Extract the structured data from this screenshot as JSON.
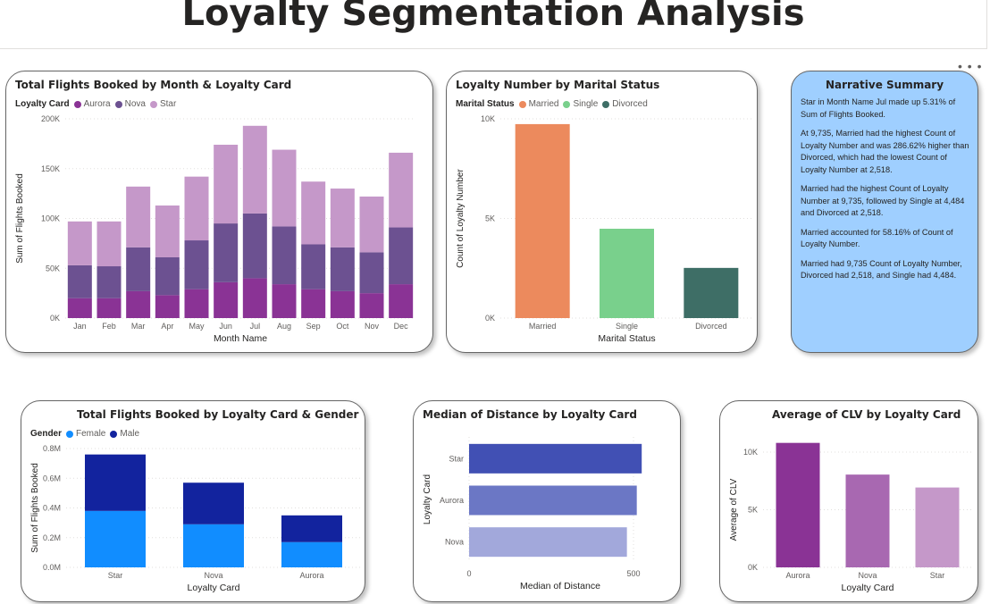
{
  "page": {
    "title": "Loyalty Segmentation Analysis"
  },
  "chart_data": [
    {
      "id": "monthly",
      "type": "bar",
      "stacked": true,
      "title": "Total Flights Booked by Month & Loyalty Card",
      "legend_title": "Loyalty Card",
      "xlabel": "Month Name",
      "ylabel": "Sum of Flights Booked",
      "categories": [
        "Jan",
        "Feb",
        "Mar",
        "Apr",
        "May",
        "Jun",
        "Jul",
        "Aug",
        "Sep",
        "Oct",
        "Nov",
        "Dec"
      ],
      "series": [
        {
          "name": "Aurora",
          "color": "#8a3395",
          "values": [
            20000,
            20000,
            27000,
            23000,
            29000,
            36000,
            40000,
            34000,
            29000,
            27000,
            25000,
            34000
          ]
        },
        {
          "name": "Nova",
          "color": "#6c5191",
          "values": [
            33000,
            32000,
            44000,
            38000,
            49000,
            59000,
            65000,
            58000,
            45000,
            44000,
            41000,
            57000
          ]
        },
        {
          "name": "Star",
          "color": "#c598c9",
          "values": [
            44000,
            45000,
            61000,
            52000,
            64000,
            79000,
            88000,
            77000,
            63000,
            59000,
            56000,
            75000
          ]
        }
      ],
      "yticks": [
        "0K",
        "50K",
        "100K",
        "150K",
        "200K"
      ],
      "ylim": [
        0,
        200000
      ],
      "grid": true,
      "legend_position": "top-left"
    },
    {
      "id": "marital",
      "type": "bar",
      "title": "Loyalty Number by Marital Status",
      "legend_title": "Marital Status",
      "xlabel": "Marital Status",
      "ylabel": "Count of Loyalty Number",
      "categories": [
        "Married",
        "Single",
        "Divorced"
      ],
      "values": [
        9735,
        4484,
        2518
      ],
      "colors": [
        "#ec8a5d",
        "#79d08c",
        "#3e6e66"
      ],
      "yticks": [
        "0K",
        "5K",
        "10K"
      ],
      "ylim": [
        0,
        10000
      ],
      "grid": true,
      "legend_position": "top-left"
    },
    {
      "id": "gender",
      "type": "bar",
      "stacked": true,
      "title": "Total Flights Booked by Loyalty Card & Gender",
      "legend_title": "Gender",
      "xlabel": "Loyalty Card",
      "ylabel": "Sum of Flights Booked",
      "categories": [
        "Star",
        "Nova",
        "Aurora"
      ],
      "series": [
        {
          "name": "Female",
          "color": "#118dff",
          "values": [
            0.38,
            0.29,
            0.17
          ]
        },
        {
          "name": "Male",
          "color": "#12239e",
          "values": [
            0.38,
            0.28,
            0.18
          ]
        }
      ],
      "yticks": [
        "0.0M",
        "0.2M",
        "0.4M",
        "0.6M",
        "0.8M"
      ],
      "ylim": [
        0,
        0.8
      ],
      "grid": true,
      "legend_position": "top-left"
    },
    {
      "id": "distance",
      "type": "bar",
      "orientation": "horizontal",
      "title": "Median of Distance by Loyalty Card",
      "xlabel": "Median of Distance",
      "ylabel": "Loyalty Card",
      "categories": [
        "Star",
        "Aurora",
        "Nova"
      ],
      "values": [
        525,
        510,
        480
      ],
      "colors": [
        "#4150b4",
        "#6b77c5",
        "#a2a8db"
      ],
      "xticks": [
        "0",
        "500"
      ],
      "xlim": [
        0,
        500
      ],
      "grid": true
    },
    {
      "id": "clv",
      "type": "bar",
      "title": "Average of CLV by Loyalty Card",
      "xlabel": "Loyalty Card",
      "ylabel": "Average of CLV",
      "categories": [
        "Aurora",
        "Nova",
        "Star"
      ],
      "values": [
        10800,
        8050,
        6930
      ],
      "colors": [
        "#8a3395",
        "#a868b1",
        "#c598c9"
      ],
      "yticks": [
        "0K",
        "5K",
        "10K"
      ],
      "ylim": [
        0,
        10000
      ],
      "grid": true
    }
  ],
  "narrative": {
    "title": "Narrative Summary",
    "paragraphs": [
      "Star in Month Name Jul made up 5.31% of Sum of Flights Booked.",
      "At 9,735, Married had the highest Count of Loyalty Number and was 286.62% higher than Divorced, which had the lowest Count of Loyalty Number at 2,518.",
      "Married had the highest Count of Loyalty Number at 9,735, followed by Single at 4,484 and Divorced at 2,518.",
      "Married accounted for 58.16% of Count of Loyalty Number.",
      "Married had 9,735 Count of Loyalty Number, Divorced had 2,518, and Single had 4,484."
    ]
  },
  "icons": {
    "more_options": "more-options-icon"
  },
  "more_glyph": "• • •"
}
